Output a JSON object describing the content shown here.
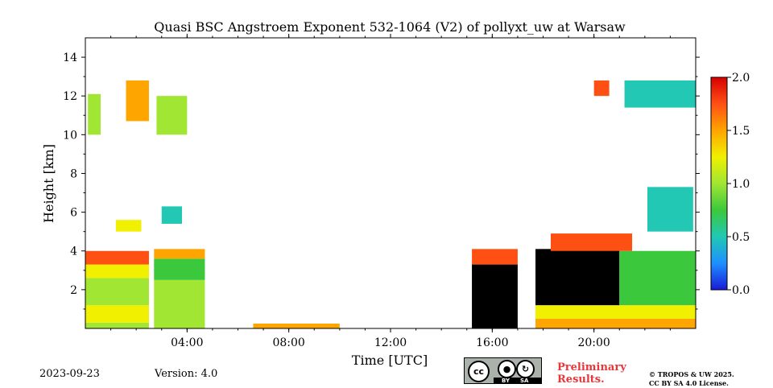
{
  "title": "Quasi BSC Angstroem Exponent 532-1064 (V2) of pollyxt_uw at Warsaw",
  "footer": {
    "date": "2023-09-23",
    "version": "Version: 4.0",
    "preliminary": [
      "Preliminary",
      "Results."
    ],
    "copyright": [
      "© TROPOS & UW 2025.",
      "CC BY SA 4.0 License."
    ],
    "license_badge": {
      "cc": "cc",
      "by": "BY",
      "sa": "SA"
    }
  },
  "chart_data": {
    "type": "heatmap",
    "title": "Quasi BSC Angstroem Exponent 532-1064 (V2) of pollyxt_uw at Warsaw",
    "xlabel": "Time [UTC]",
    "ylabel": "Height [km]",
    "xlim": [
      "00:00",
      "24:00"
    ],
    "ylim": [
      0,
      15
    ],
    "xticks": [
      "04:00",
      "08:00",
      "12:00",
      "16:00",
      "20:00"
    ],
    "yticks": [
      2,
      4,
      6,
      8,
      10,
      12,
      14
    ],
    "colorbar": {
      "min": 0.0,
      "max": 2.0,
      "ticks": [
        "0.0",
        "0.5",
        "1.0",
        "1.5",
        "2.0"
      ],
      "colormap": [
        "#1a1ad8",
        "#1e90ff",
        "#22c8b4",
        "#3cc83c",
        "#a0e632",
        "#f0f000",
        "#ffa500",
        "#ff5014",
        "#d70000"
      ]
    },
    "regions": [
      {
        "t": [
          0.0,
          2.5
        ],
        "h": [
          0.0,
          0.3
        ],
        "value": 1.0
      },
      {
        "t": [
          0.0,
          2.5
        ],
        "h": [
          0.3,
          1.2
        ],
        "value": 1.3
      },
      {
        "t": [
          0.0,
          2.5
        ],
        "h": [
          1.2,
          2.6
        ],
        "value": 0.9
      },
      {
        "t": [
          0.0,
          2.5
        ],
        "h": [
          2.6,
          3.3
        ],
        "value": 1.15
      },
      {
        "t": [
          0.0,
          2.5
        ],
        "h": [
          3.3,
          4.0
        ],
        "value": 1.75
      },
      {
        "t": [
          2.7,
          4.7
        ],
        "h": [
          0.0,
          2.5
        ],
        "value": 0.95
      },
      {
        "t": [
          2.7,
          4.7
        ],
        "h": [
          2.5,
          3.6
        ],
        "value": 0.65
      },
      {
        "t": [
          2.7,
          4.7
        ],
        "h": [
          3.6,
          4.1
        ],
        "value": 1.45
      },
      {
        "t": [
          0.1,
          0.6
        ],
        "h": [
          10.0,
          12.1
        ],
        "value": 0.9
      },
      {
        "t": [
          1.6,
          2.5
        ],
        "h": [
          10.7,
          12.8
        ],
        "value": 1.55
      },
      {
        "t": [
          2.8,
          4.0
        ],
        "h": [
          10.0,
          12.0
        ],
        "value": 1.0
      },
      {
        "t": [
          1.2,
          2.2
        ],
        "h": [
          5.0,
          5.6
        ],
        "value": 1.3
      },
      {
        "t": [
          3.0,
          3.8
        ],
        "h": [
          5.4,
          6.3
        ],
        "value": 0.6
      },
      {
        "t": [
          6.6,
          10.0
        ],
        "h": [
          0.02,
          0.25
        ],
        "value": 1.4
      },
      {
        "t": [
          15.2,
          17.0
        ],
        "h": [
          0.0,
          3.3
        ],
        "value": 3.0
      },
      {
        "t": [
          15.2,
          17.0
        ],
        "h": [
          3.3,
          4.1
        ],
        "value": 1.7
      },
      {
        "t": [
          17.7,
          24.0
        ],
        "h": [
          0.0,
          0.5
        ],
        "value": 1.45
      },
      {
        "t": [
          17.7,
          24.0
        ],
        "h": [
          0.5,
          1.2
        ],
        "value": 1.15
      },
      {
        "t": [
          17.7,
          21.0
        ],
        "h": [
          1.2,
          4.1
        ],
        "value": 3.0
      },
      {
        "t": [
          21.0,
          24.0
        ],
        "h": [
          1.2,
          4.0
        ],
        "value": 0.8
      },
      {
        "t": [
          18.3,
          21.5
        ],
        "h": [
          4.0,
          4.9
        ],
        "value": 1.8
      },
      {
        "t": [
          21.2,
          24.0
        ],
        "h": [
          11.4,
          12.8
        ],
        "value": 0.4
      },
      {
        "t": [
          20.0,
          20.6
        ],
        "h": [
          12.0,
          12.8
        ],
        "value": 1.8
      },
      {
        "t": [
          22.1,
          23.9
        ],
        "h": [
          5.0,
          7.3
        ],
        "value": 0.45
      }
    ]
  }
}
